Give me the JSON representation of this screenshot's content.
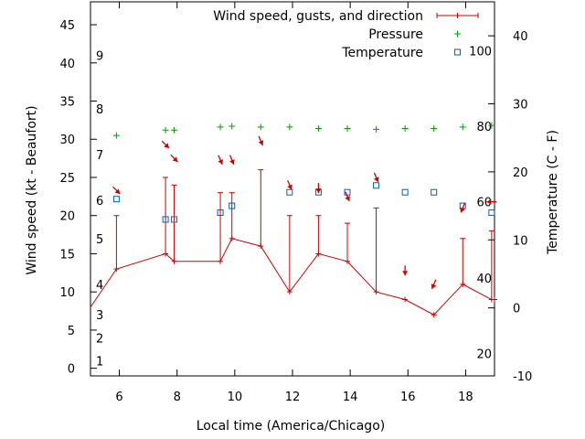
{
  "chart_data": {
    "type": "line",
    "xlabel": "Local time (America/Chicago)",
    "ylabel": "Wind speed (kt - Beaufort)",
    "y2label": "Temperature (C - F)",
    "xlim": [
      5,
      19
    ],
    "ylim": [
      -1,
      48
    ],
    "y2lim": [
      -10,
      45
    ],
    "x_ticks": [
      6,
      8,
      10,
      12,
      14,
      16,
      18
    ],
    "y_ticks": [
      0,
      5,
      10,
      15,
      20,
      25,
      30,
      35,
      40,
      45
    ],
    "y2_ticks": [
      -10,
      0,
      10,
      20,
      30,
      40
    ],
    "beaufort_labels": [
      {
        "text": "1",
        "y": 1
      },
      {
        "text": "2",
        "y": 4
      },
      {
        "text": "3",
        "y": 7
      },
      {
        "text": "4",
        "y": 11
      },
      {
        "text": "5",
        "y": 17
      },
      {
        "text": "6",
        "y": 22
      },
      {
        "text": "7",
        "y": 28
      },
      {
        "text": "8",
        "y": 34
      },
      {
        "text": "9",
        "y": 41
      }
    ],
    "fahrenheit_labels": [
      {
        "text": "20",
        "y2": -6.7
      },
      {
        "text": "40",
        "y2": 4.4
      },
      {
        "text": "60",
        "y2": 15.6
      },
      {
        "text": "80",
        "y2": 26.7
      },
      {
        "text": "100",
        "y2": 37.8
      }
    ],
    "legend": {
      "placement": "top-right",
      "entries": [
        {
          "label": "Wind speed, gusts, and direction",
          "marker": "errorbar",
          "color": "#cc0000"
        },
        {
          "label": "Pressure",
          "marker": "plus",
          "color": "#00a000"
        },
        {
          "label": "Temperature",
          "marker": "square",
          "color": "#0060c0"
        }
      ]
    },
    "series": [
      {
        "name": "Wind speed, gusts, and direction",
        "color": "#cc0000",
        "x": [
          4.75,
          5.9,
          7.6,
          7.9,
          9.5,
          9.9,
          10.9,
          11.9,
          12.9,
          13.9,
          14.9,
          15.9,
          16.9,
          17.9,
          18.9,
          19.0
        ],
        "y": [
          8,
          13,
          15,
          14,
          14,
          17,
          16,
          10,
          15,
          14,
          10,
          9,
          7,
          11,
          9,
          9
        ],
        "gust": [
          null,
          20,
          25,
          24,
          23,
          23,
          26,
          20,
          20,
          19,
          21,
          null,
          null,
          17,
          18,
          null
        ]
      },
      {
        "name": "Pressure",
        "color": "#00a000",
        "x": [
          5.9,
          7.6,
          7.9,
          9.5,
          9.9,
          10.9,
          11.9,
          12.9,
          13.9,
          14.9,
          15.9,
          16.9,
          17.9,
          18.9
        ],
        "y": [
          30.5,
          31.2,
          31.2,
          31.6,
          31.7,
          31.6,
          31.6,
          31.4,
          31.4,
          31.3,
          31.4,
          31.4,
          31.6,
          31.8
        ]
      },
      {
        "name": "Temperature",
        "color": "#0060c0",
        "axis": "y2",
        "x": [
          5.9,
          7.6,
          7.9,
          9.5,
          9.9,
          11.9,
          12.9,
          13.9,
          14.9,
          15.9,
          16.9,
          17.9,
          18.9
        ],
        "y2": [
          16,
          13,
          13,
          14,
          15,
          17,
          17,
          17,
          18,
          17,
          17,
          15,
          14
        ]
      }
    ],
    "wind_direction_arrows": [
      {
        "x": 5.9,
        "y": 23.3,
        "dir": "from-northwest"
      },
      {
        "x": 7.6,
        "y": 29.3,
        "dir": "from-northwest"
      },
      {
        "x": 7.9,
        "y": 27.5,
        "dir": "from-northwest"
      },
      {
        "x": 9.5,
        "y": 27.3,
        "dir": "from-north-northwest"
      },
      {
        "x": 9.9,
        "y": 27.3,
        "dir": "from-north-northwest"
      },
      {
        "x": 10.9,
        "y": 29.8,
        "dir": "from-north-northwest"
      },
      {
        "x": 11.9,
        "y": 24.0,
        "dir": "from-north-northwest"
      },
      {
        "x": 12.9,
        "y": 23.6,
        "dir": "from-north"
      },
      {
        "x": 13.9,
        "y": 22.5,
        "dir": "from-north-northwest"
      },
      {
        "x": 14.9,
        "y": 25.0,
        "dir": "from-north-northwest"
      },
      {
        "x": 15.9,
        "y": 12.8,
        "dir": "from-north"
      },
      {
        "x": 16.9,
        "y": 11.0,
        "dir": "from-north-northeast"
      },
      {
        "x": 17.9,
        "y": 21.0,
        "dir": "from-north-northeast"
      },
      {
        "x": 18.9,
        "y": 21.8,
        "dir": "from-east"
      }
    ],
    "grid": false
  }
}
